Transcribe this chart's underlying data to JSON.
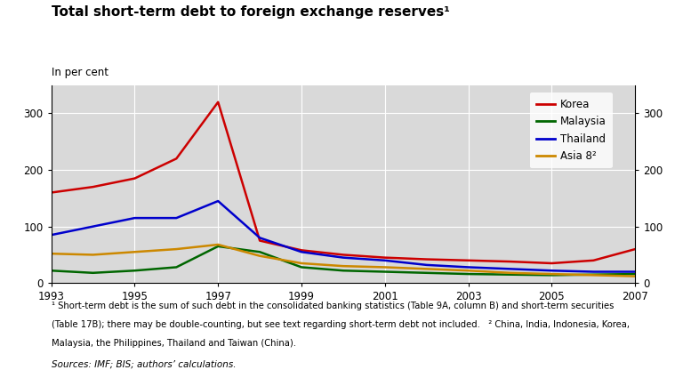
{
  "title": "Total short-term debt to foreign exchange reserves¹",
  "ylabel_left": "In per cent",
  "background_color": "#d9d9d9",
  "years": [
    1993,
    1994,
    1995,
    1996,
    1997,
    1998,
    1999,
    2000,
    2001,
    2002,
    2003,
    2004,
    2005,
    2006,
    2007
  ],
  "korea": [
    160,
    170,
    185,
    220,
    320,
    75,
    58,
    50,
    45,
    42,
    40,
    38,
    35,
    40,
    60
  ],
  "malaysia": [
    22,
    18,
    22,
    28,
    65,
    55,
    28,
    22,
    20,
    18,
    16,
    15,
    14,
    15,
    16
  ],
  "thailand": [
    85,
    100,
    115,
    115,
    145,
    80,
    55,
    45,
    40,
    32,
    28,
    25,
    22,
    20,
    20
  ],
  "asia8": [
    52,
    50,
    55,
    60,
    68,
    48,
    35,
    30,
    28,
    25,
    22,
    18,
    16,
    14,
    12
  ],
  "korea_color": "#cc0000",
  "malaysia_color": "#006600",
  "thailand_color": "#0000cc",
  "asia8_color": "#cc8800",
  "ylim": [
    0,
    350
  ],
  "yticks": [
    0,
    100,
    200,
    300
  ],
  "xticks": [
    1993,
    1995,
    1997,
    1999,
    2001,
    2003,
    2005,
    2007
  ],
  "footnote_line1": "¹ Short-term debt is the sum of such debt in the consolidated banking statistics (Table 9A, column B) and short-term securities",
  "footnote_line2": "(Table 17B); there may be double-counting, but see text regarding short-term debt not included.   ² China, India, Indonesia, Korea,",
  "footnote_line3": "Malaysia, the Philippines, Thailand and Taiwan (China).",
  "source": "Sources: IMF; BIS; authors’ calculations.",
  "legend_labels": [
    "Korea",
    "Malaysia",
    "Thailand",
    "Asia 8²"
  ],
  "fig_width": 7.68,
  "fig_height": 4.16,
  "dpi": 100
}
